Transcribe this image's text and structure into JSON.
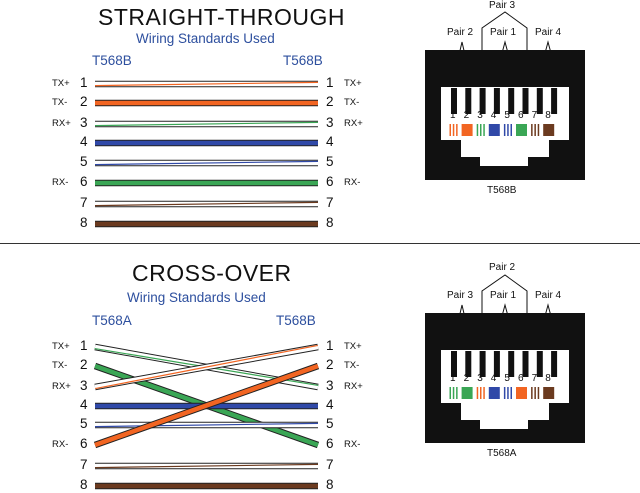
{
  "straight": {
    "title": "STRAIGHT-THROUGH",
    "subtitle": "Wiring Standards Used",
    "left_std": "T568B",
    "right_std": "T568B",
    "left_signals": [
      "TX+",
      "TX-",
      "RX+",
      "",
      "",
      "RX-",
      "",
      ""
    ],
    "right_signals": [
      "TX+",
      "TX-",
      "RX+",
      "",
      "",
      "RX-",
      "",
      ""
    ],
    "pins": [
      "1",
      "2",
      "3",
      "4",
      "5",
      "6",
      "7",
      "8"
    ],
    "connector": {
      "label": "T568B",
      "top_pair": "Pair 3",
      "left_pair": "Pair 2",
      "middle_pair": "Pair 1",
      "right_pair": "Pair 4",
      "pin_numbers": [
        "1",
        "2",
        "3",
        "4",
        "5",
        "6",
        "7",
        "8"
      ]
    }
  },
  "cross": {
    "title": "CROSS-OVER",
    "subtitle": "Wiring Standards Used",
    "left_std": "T568A",
    "right_std": "T568B",
    "left_signals": [
      "TX+",
      "TX-",
      "RX+",
      "",
      "",
      "RX-",
      "",
      ""
    ],
    "right_signals": [
      "TX+",
      "TX-",
      "RX+",
      "",
      "",
      "RX-",
      "",
      ""
    ],
    "pins": [
      "1",
      "2",
      "3",
      "4",
      "5",
      "6",
      "7",
      "8"
    ],
    "connector": {
      "label": "T568A",
      "top_pair": "Pair 2",
      "left_pair": "Pair 3",
      "middle_pair": "Pair 1",
      "right_pair": "Pair 4",
      "pin_numbers": [
        "1",
        "2",
        "3",
        "4",
        "5",
        "6",
        "7",
        "8"
      ]
    }
  },
  "colors": {
    "orange": "#f26522",
    "green": "#3aa655",
    "blue": "#3049a8",
    "brown": "#6b3a1f",
    "accent_text": "#2d4f9e"
  }
}
